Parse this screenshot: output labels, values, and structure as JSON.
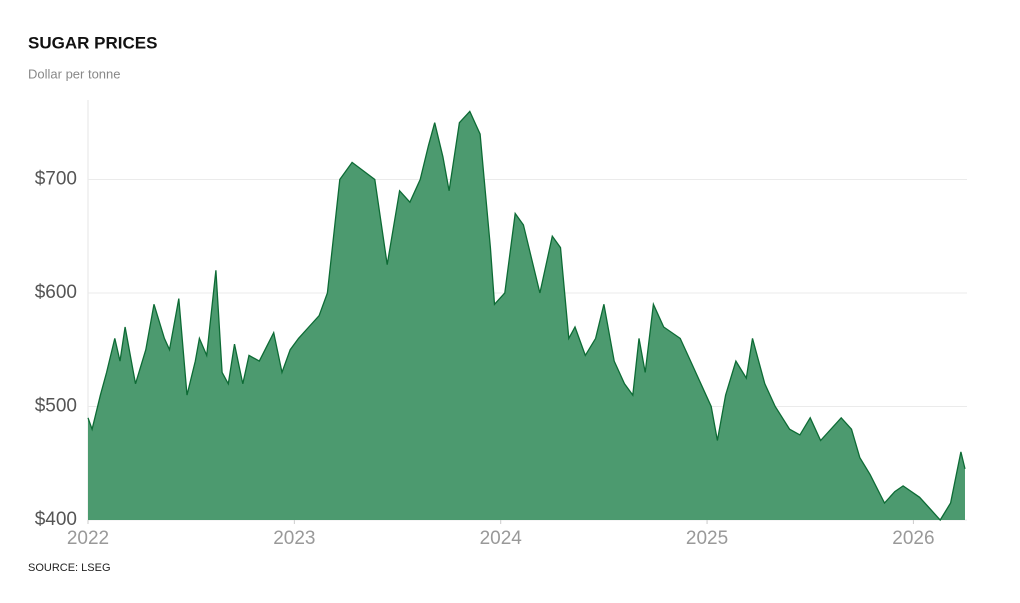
{
  "chart_data": {
    "type": "area",
    "title": "SUGAR PRICES",
    "subtitle": "Dollar per tonne",
    "source": "SOURCE: LSEG",
    "x": [
      2022.0,
      2022.02,
      2022.06,
      2022.09,
      2022.13,
      2022.155,
      2022.18,
      2022.23,
      2022.28,
      2022.32,
      2022.37,
      2022.395,
      2022.44,
      2022.48,
      2022.52,
      2022.54,
      2022.575,
      2022.62,
      2022.65,
      2022.68,
      2022.71,
      2022.75,
      2022.78,
      2022.83,
      2022.9,
      2022.94,
      2022.98,
      2023.02,
      2023.07,
      2023.12,
      2023.16,
      2023.22,
      2023.28,
      2023.39,
      2023.45,
      2023.51,
      2023.56,
      2023.61,
      2023.65,
      2023.68,
      2023.72,
      2023.75,
      2023.8,
      2023.85,
      2023.9,
      2023.92,
      2023.95,
      2023.97,
      2024.02,
      2024.07,
      2024.11,
      2024.19,
      2024.25,
      2024.29,
      2024.33,
      2024.36,
      2024.41,
      2024.46,
      2024.5,
      2024.55,
      2024.6,
      2024.64,
      2024.67,
      2024.7,
      2024.74,
      2024.79,
      2024.87,
      2024.92,
      2024.97,
      2025.02,
      2025.05,
      2025.09,
      2025.14,
      2025.19,
      2025.22,
      2025.28,
      2025.33,
      2025.4,
      2025.45,
      2025.5,
      2025.55,
      2025.65,
      2025.7,
      2025.74,
      2025.79,
      2025.86,
      2025.91,
      2025.95,
      2026.03,
      2026.08,
      2026.13,
      2026.18,
      2026.23,
      2026.25
    ],
    "values": [
      490,
      480,
      510,
      530,
      560,
      540,
      570,
      520,
      550,
      590,
      560,
      550,
      595,
      510,
      540,
      560,
      545,
      620,
      530,
      520,
      555,
      520,
      545,
      540,
      565,
      530,
      550,
      560,
      570,
      580,
      600,
      700,
      715,
      700,
      625,
      690,
      680,
      700,
      730,
      750,
      720,
      690,
      750,
      760,
      740,
      700,
      640,
      590,
      600,
      670,
      660,
      600,
      650,
      640,
      560,
      570,
      545,
      560,
      590,
      540,
      520,
      510,
      560,
      530,
      590,
      570,
      560,
      540,
      520,
      500,
      470,
      510,
      540,
      525,
      560,
      520,
      500,
      480,
      475,
      490,
      470,
      490,
      480,
      455,
      440,
      415,
      425,
      430,
      420,
      410,
      400,
      415,
      460,
      445
    ],
    "color": "#0d6b35",
    "fill": "#4c9a6f",
    "xlim": [
      2022,
      2026.25
    ],
    "xticks": [
      2022,
      2023,
      2024,
      2025,
      2026
    ],
    "ylim": [
      400,
      770
    ],
    "yticks": [
      {
        "value": 400,
        "label": "$400"
      },
      {
        "value": 500,
        "label": "$500"
      },
      {
        "value": 600,
        "label": "$600"
      },
      {
        "value": 700,
        "label": "$700"
      }
    ],
    "grid": true
  }
}
